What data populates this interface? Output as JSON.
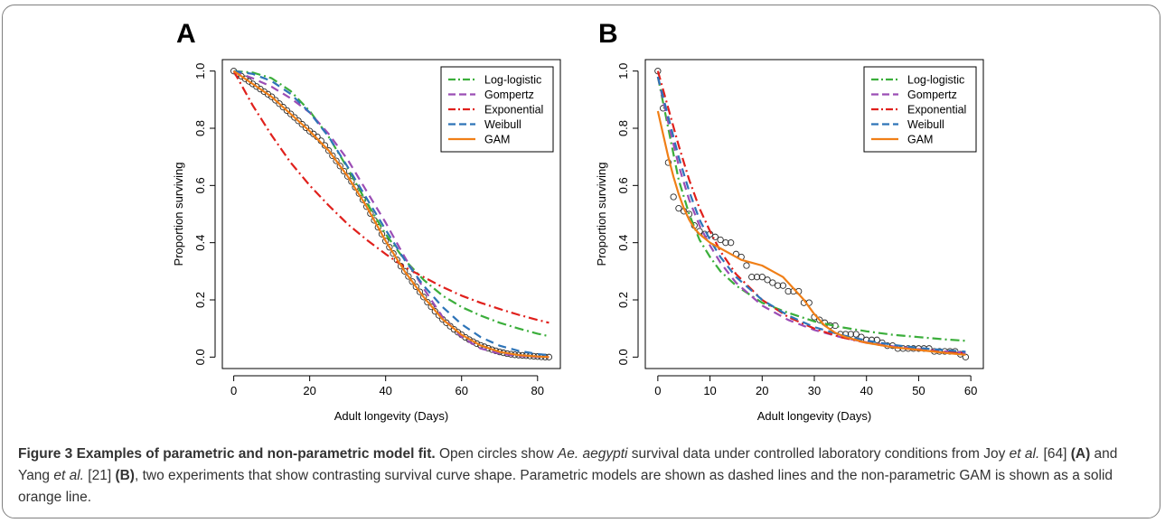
{
  "figure": {
    "caption_title": "Figure 3 Examples of parametric and non-parametric model fit.",
    "caption_segments": [
      {
        "text": " Open circles show ",
        "style": "normal"
      },
      {
        "text": "Ae. aegypti",
        "style": "italic"
      },
      {
        "text": " survival data under controlled laboratory conditions from Joy ",
        "style": "normal"
      },
      {
        "text": "et al.",
        "style": "italic"
      },
      {
        "text": " [64] ",
        "style": "normal"
      },
      {
        "text": "(A)",
        "style": "bold"
      },
      {
        "text": " and Yang ",
        "style": "normal"
      },
      {
        "text": "et al.",
        "style": "italic"
      },
      {
        "text": " [21] ",
        "style": "normal"
      },
      {
        "text": "(B)",
        "style": "bold"
      },
      {
        "text": ", two experiments that show contrasting survival curve shape. Parametric models are shown as dashed lines and the non-parametric GAM is shown as a solid orange line.",
        "style": "normal"
      }
    ]
  },
  "chart_data": [
    {
      "panel": "A",
      "type": "line",
      "xlabel": "Adult longevity (Days)",
      "ylabel": "Proportion surviving",
      "xlim": [
        -3,
        86
      ],
      "ylim": [
        -0.04,
        1.04
      ],
      "xticks": [
        0,
        20,
        40,
        60,
        80
      ],
      "yticks": [
        0.0,
        0.2,
        0.4,
        0.6,
        0.8,
        1.0
      ],
      "legend_position": "top-right",
      "grid": false,
      "observed": {
        "marker": "open-circle",
        "x": [
          0,
          1,
          2,
          3,
          4,
          5,
          6,
          7,
          8,
          9,
          10,
          11,
          12,
          13,
          14,
          15,
          16,
          17,
          18,
          19,
          20,
          21,
          22,
          23,
          24,
          25,
          26,
          27,
          28,
          29,
          30,
          31,
          32,
          33,
          34,
          35,
          36,
          37,
          38,
          39,
          40,
          41,
          42,
          43,
          44,
          45,
          46,
          47,
          48,
          49,
          50,
          51,
          52,
          53,
          54,
          55,
          56,
          57,
          58,
          59,
          60,
          61,
          62,
          63,
          64,
          65,
          66,
          67,
          68,
          69,
          70,
          71,
          72,
          73,
          74,
          75,
          76,
          77,
          78,
          79,
          80,
          81,
          82,
          83
        ],
        "y": [
          1.0,
          0.991,
          0.982,
          0.973,
          0.964,
          0.955,
          0.946,
          0.937,
          0.928,
          0.919,
          0.91,
          0.898,
          0.886,
          0.874,
          0.862,
          0.85,
          0.838,
          0.826,
          0.814,
          0.802,
          0.79,
          0.78,
          0.77,
          0.756,
          0.74,
          0.722,
          0.704,
          0.686,
          0.668,
          0.65,
          0.632,
          0.614,
          0.594,
          0.572,
          0.55,
          0.526,
          0.502,
          0.478,
          0.454,
          0.43,
          0.406,
          0.384,
          0.362,
          0.34,
          0.318,
          0.3,
          0.282,
          0.264,
          0.246,
          0.228,
          0.21,
          0.192,
          0.176,
          0.16,
          0.146,
          0.132,
          0.12,
          0.108,
          0.097,
          0.087,
          0.078,
          0.069,
          0.061,
          0.054,
          0.047,
          0.041,
          0.036,
          0.031,
          0.026,
          0.022,
          0.018,
          0.015,
          0.012,
          0.01,
          0.008,
          0.007,
          0.006,
          0.005,
          0.004,
          0.003,
          0.002,
          0.001,
          0.0,
          0.0
        ]
      },
      "series": [
        {
          "name": "Log-logistic",
          "color": "#3bae3b",
          "dash": "dashdot",
          "x": [
            0,
            5,
            10,
            15,
            20,
            25,
            30,
            35,
            40,
            45,
            50,
            55,
            60,
            65,
            70,
            75,
            80,
            83
          ],
          "y": [
            1.0,
            0.995,
            0.975,
            0.93,
            0.86,
            0.77,
            0.66,
            0.54,
            0.43,
            0.34,
            0.27,
            0.215,
            0.175,
            0.145,
            0.12,
            0.1,
            0.082,
            0.073
          ]
        },
        {
          "name": "Gompertz",
          "color": "#9b4db5",
          "dash": "dashed",
          "x": [
            0,
            5,
            10,
            15,
            20,
            25,
            30,
            35,
            40,
            45,
            50,
            55,
            60,
            65,
            70,
            75,
            80,
            83
          ],
          "y": [
            1.0,
            0.975,
            0.945,
            0.905,
            0.855,
            0.78,
            0.69,
            0.58,
            0.47,
            0.35,
            0.24,
            0.14,
            0.07,
            0.03,
            0.012,
            0.004,
            0.001,
            0.0
          ]
        },
        {
          "name": "Exponential",
          "color": "#e0201c",
          "dash": "dashdot",
          "x": [
            0,
            5,
            10,
            15,
            20,
            25,
            30,
            35,
            40,
            45,
            50,
            55,
            60,
            65,
            70,
            75,
            80,
            83
          ],
          "y": [
            1.0,
            0.88,
            0.775,
            0.68,
            0.6,
            0.53,
            0.465,
            0.41,
            0.36,
            0.315,
            0.28,
            0.245,
            0.215,
            0.19,
            0.168,
            0.148,
            0.13,
            0.12
          ]
        },
        {
          "name": "Weibull",
          "color": "#2e74b8",
          "dash": "dashed",
          "x": [
            0,
            5,
            10,
            15,
            20,
            25,
            30,
            35,
            40,
            45,
            50,
            55,
            60,
            65,
            70,
            75,
            80,
            83
          ],
          "y": [
            1.0,
            0.99,
            0.965,
            0.92,
            0.855,
            0.77,
            0.665,
            0.555,
            0.445,
            0.34,
            0.25,
            0.175,
            0.115,
            0.07,
            0.04,
            0.022,
            0.011,
            0.007
          ]
        },
        {
          "name": "GAM",
          "color": "#f07f17",
          "dash": "solid",
          "x": [
            0,
            5,
            10,
            15,
            20,
            25,
            30,
            35,
            40,
            45,
            50,
            55,
            60,
            65,
            70,
            75,
            80,
            83
          ],
          "y": [
            1.0,
            0.955,
            0.91,
            0.85,
            0.79,
            0.722,
            0.632,
            0.526,
            0.406,
            0.3,
            0.21,
            0.132,
            0.078,
            0.041,
            0.018,
            0.007,
            0.002,
            0.0
          ]
        }
      ]
    },
    {
      "panel": "B",
      "type": "line",
      "xlabel": "Adult longevity (Days)",
      "ylabel": "Proportion surviving",
      "xlim": [
        -2.4,
        62.4
      ],
      "ylim": [
        -0.04,
        1.04
      ],
      "xticks": [
        0,
        10,
        20,
        30,
        40,
        50,
        60
      ],
      "yticks": [
        0.0,
        0.2,
        0.4,
        0.6,
        0.8,
        1.0
      ],
      "legend_position": "top-right",
      "grid": false,
      "observed": {
        "marker": "open-circle",
        "x": [
          0,
          1,
          2,
          3,
          4,
          5,
          6,
          7,
          8,
          9,
          10,
          11,
          12,
          13,
          14,
          15,
          16,
          17,
          18,
          19,
          20,
          21,
          22,
          23,
          24,
          25,
          26,
          27,
          28,
          29,
          30,
          31,
          32,
          33,
          34,
          35,
          36,
          37,
          38,
          39,
          40,
          41,
          42,
          43,
          44,
          45,
          46,
          47,
          48,
          49,
          50,
          51,
          52,
          53,
          54,
          55,
          56,
          57,
          58,
          59
        ],
        "y": [
          1.0,
          0.87,
          0.68,
          0.56,
          0.52,
          0.51,
          0.5,
          0.46,
          0.44,
          0.43,
          0.43,
          0.42,
          0.41,
          0.4,
          0.4,
          0.36,
          0.35,
          0.32,
          0.28,
          0.28,
          0.28,
          0.27,
          0.26,
          0.25,
          0.25,
          0.23,
          0.23,
          0.23,
          0.19,
          0.19,
          0.14,
          0.13,
          0.12,
          0.11,
          0.11,
          0.08,
          0.08,
          0.08,
          0.08,
          0.07,
          0.06,
          0.06,
          0.06,
          0.05,
          0.04,
          0.04,
          0.03,
          0.03,
          0.03,
          0.03,
          0.03,
          0.03,
          0.03,
          0.02,
          0.02,
          0.02,
          0.02,
          0.02,
          0.01,
          0.0
        ]
      },
      "series": [
        {
          "name": "Log-logistic",
          "color": "#3bae3b",
          "dash": "dashdot",
          "x": [
            0,
            2,
            4,
            6,
            8,
            10,
            12,
            15,
            20,
            25,
            30,
            35,
            40,
            45,
            50,
            55,
            59
          ],
          "y": [
            0.98,
            0.8,
            0.62,
            0.5,
            0.41,
            0.35,
            0.3,
            0.25,
            0.19,
            0.155,
            0.125,
            0.105,
            0.09,
            0.078,
            0.07,
            0.062,
            0.057
          ]
        },
        {
          "name": "Gompertz",
          "color": "#9b4db5",
          "dash": "dashed",
          "x": [
            0,
            2,
            4,
            6,
            8,
            10,
            12,
            15,
            20,
            25,
            30,
            35,
            40,
            45,
            50,
            55,
            59
          ],
          "y": [
            0.98,
            0.82,
            0.67,
            0.55,
            0.46,
            0.39,
            0.33,
            0.26,
            0.18,
            0.13,
            0.095,
            0.07,
            0.052,
            0.038,
            0.028,
            0.02,
            0.015
          ]
        },
        {
          "name": "Exponential",
          "color": "#e0201c",
          "dash": "dashdot",
          "x": [
            0,
            2,
            4,
            6,
            8,
            10,
            12,
            15,
            20,
            25,
            30,
            35,
            40,
            45,
            50,
            55,
            59
          ],
          "y": [
            1.0,
            0.87,
            0.74,
            0.62,
            0.52,
            0.44,
            0.37,
            0.29,
            0.2,
            0.14,
            0.1,
            0.07,
            0.05,
            0.035,
            0.025,
            0.017,
            0.013
          ]
        },
        {
          "name": "Weibull",
          "color": "#2e74b8",
          "dash": "dashed",
          "x": [
            0,
            2,
            4,
            6,
            8,
            10,
            12,
            15,
            20,
            25,
            30,
            35,
            40,
            45,
            50,
            55,
            59
          ],
          "y": [
            0.98,
            0.84,
            0.7,
            0.58,
            0.48,
            0.41,
            0.35,
            0.28,
            0.2,
            0.145,
            0.105,
            0.078,
            0.058,
            0.043,
            0.032,
            0.024,
            0.019
          ]
        },
        {
          "name": "GAM",
          "color": "#f07f17",
          "dash": "solid",
          "x": [
            0,
            1,
            2,
            3,
            4,
            5,
            6,
            7,
            8,
            10,
            12,
            14,
            16,
            18,
            20,
            22,
            24,
            26,
            28,
            30,
            32,
            34,
            36,
            40,
            45,
            50,
            55,
            59
          ],
          "y": [
            0.86,
            0.78,
            0.7,
            0.63,
            0.57,
            0.52,
            0.48,
            0.45,
            0.43,
            0.4,
            0.38,
            0.36,
            0.34,
            0.33,
            0.32,
            0.3,
            0.28,
            0.24,
            0.2,
            0.15,
            0.11,
            0.085,
            0.07,
            0.05,
            0.035,
            0.025,
            0.015,
            0.008
          ]
        }
      ]
    }
  ]
}
